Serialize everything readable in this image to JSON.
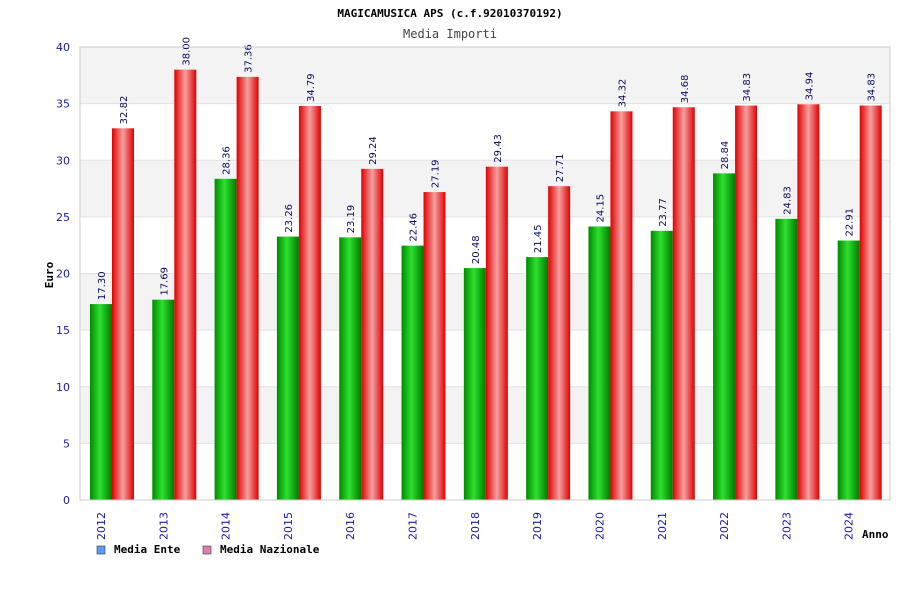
{
  "chart_data": {
    "type": "bar",
    "title": "MAGICAMUSICA APS (c.f.92010370192)",
    "subtitle": "Media Importi",
    "xlabel": "Anno",
    "ylabel": "Euro",
    "ylim": [
      0,
      40
    ],
    "yticks": [
      0,
      5,
      10,
      15,
      20,
      25,
      30,
      35,
      40
    ],
    "grid": true,
    "legend": "bottom-left",
    "categories": [
      "2012",
      "2013",
      "2014",
      "2015",
      "2016",
      "2017",
      "2018",
      "2019",
      "2020",
      "2021",
      "2022",
      "2023",
      "2024"
    ],
    "series": [
      {
        "name": "Media Ente",
        "color": "#00c000",
        "legend_color": "#5b9bf0",
        "values": [
          17.3,
          17.69,
          28.36,
          23.26,
          23.19,
          22.46,
          20.48,
          21.45,
          24.15,
          23.77,
          28.84,
          24.83,
          22.91
        ],
        "labels": [
          "17.30",
          "17.69",
          "28.36",
          "23.26",
          "23.19",
          "22.46",
          "20.48",
          "21.45",
          "24.15",
          "23.77",
          "28.84",
          "24.83",
          "22.91"
        ]
      },
      {
        "name": "Media Nazionale",
        "color": "#ff1010",
        "legend_color": "#e080b0",
        "values": [
          32.82,
          38.0,
          37.36,
          34.79,
          29.24,
          27.19,
          29.43,
          27.71,
          34.32,
          34.68,
          34.83,
          34.94,
          34.83
        ],
        "labels": [
          "32.82",
          "38.00",
          "37.36",
          "34.79",
          "29.24",
          "27.19",
          "29.43",
          "27.71",
          "34.32",
          "34.68",
          "34.83",
          "34.94",
          "34.83"
        ]
      }
    ]
  }
}
